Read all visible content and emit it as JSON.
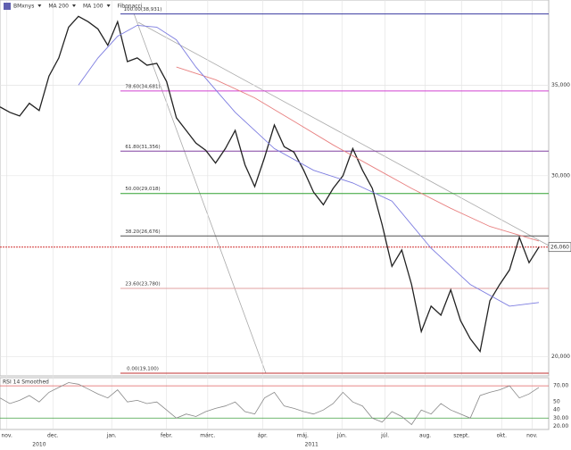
{
  "chart_data": {
    "type": "line",
    "xlim": [
      0,
      56
    ],
    "ylim": [
      19000,
      39700
    ],
    "xticks": [
      {
        "value": 0.7,
        "label": "nov."
      },
      {
        "value": 5.4,
        "label": "dec."
      },
      {
        "value": 11.4,
        "label": "jan."
      },
      {
        "value": 17,
        "label": "febr."
      },
      {
        "value": 21.2,
        "label": "márc."
      },
      {
        "value": 26.8,
        "label": "ápr."
      },
      {
        "value": 30.9,
        "label": "máj."
      },
      {
        "value": 34.9,
        "label": "jún."
      },
      {
        "value": 39.3,
        "label": "júl."
      },
      {
        "value": 43.4,
        "label": "aug."
      },
      {
        "value": 47.1,
        "label": "szept."
      },
      {
        "value": 51.2,
        "label": "okt."
      },
      {
        "value": 54.3,
        "label": "nov."
      }
    ],
    "years": [
      {
        "value": 4,
        "label": "2010"
      },
      {
        "value": 31.8,
        "label": "2011"
      }
    ],
    "yticks": [
      {
        "value": 20000,
        "label": "20,000"
      },
      {
        "value": 30000,
        "label": "30,000"
      },
      {
        "value": 35000,
        "label": "35,000"
      }
    ],
    "series": [
      {
        "name": "BMxnys",
        "color": "#222222",
        "values": [
          33800,
          33500,
          33300,
          34000,
          33600,
          35500,
          36500,
          38200,
          38800,
          38500,
          38100,
          37200,
          38500,
          36300,
          36500,
          36100,
          36200,
          35200,
          33200,
          32500,
          31800,
          31400,
          30700,
          31500,
          32500,
          30600,
          29400,
          31000,
          32800,
          31600,
          31300,
          30300,
          29100,
          28400,
          29300,
          30000,
          31500,
          30300,
          29300,
          27300,
          25000,
          25900,
          24000,
          21400,
          22800,
          22300,
          23700,
          22000,
          21000,
          20300,
          23100,
          24000,
          24800,
          26600,
          25200,
          26060
        ]
      },
      {
        "name": "MA 200",
        "color": "#e88080",
        "x": [
          18,
          22,
          26,
          30,
          34,
          38,
          42,
          46,
          50,
          55
        ],
        "values": [
          36000,
          35300,
          34300,
          33000,
          31700,
          30500,
          29300,
          28200,
          27200,
          26400
        ]
      },
      {
        "name": "MA 100",
        "color": "#7c7ce0",
        "x": [
          8,
          10,
          12,
          14,
          16,
          18,
          20,
          24,
          28,
          32,
          36,
          40,
          44,
          48,
          52,
          55
        ],
        "values": [
          35000,
          36500,
          37700,
          38300,
          38200,
          37500,
          36000,
          33500,
          31500,
          30300,
          29600,
          28600,
          26000,
          24000,
          22800,
          23000
        ]
      }
    ],
    "fibonacci": {
      "name": "Fibonacci",
      "levels": [
        {
          "value": 38931,
          "label": "100.00(38,931)",
          "color": "#3a3aa0"
        },
        {
          "value": 34681,
          "label": "78.60(34,681)",
          "color": "#d040d0"
        },
        {
          "value": 31356,
          "label": "61.80(31,356)",
          "color": "#8040a0"
        },
        {
          "value": 29018,
          "label": "50.00(29,018)",
          "color": "#30a030"
        },
        {
          "value": 26676,
          "label": "38.20(26,676)",
          "color": "#505050"
        },
        {
          "value": 23780,
          "label": "23.60(23,780)",
          "color": "#e0a0a0"
        },
        {
          "value": 19100,
          "label": "0.00(19,100)",
          "color": "#c03030"
        }
      ]
    },
    "last_price": {
      "value": 26060,
      "label": "26,060",
      "color": "#d03030"
    },
    "rsi": {
      "title": "RSI 14 Smoothed",
      "color": "#888888",
      "ylim": [
        17,
        79
      ],
      "yticks": [
        {
          "value": 20,
          "label": "20.00"
        },
        {
          "value": 30,
          "label": "30.00"
        },
        40,
        50,
        {
          "value": 70,
          "label": "70.00"
        }
      ],
      "overbought": 70,
      "oversold": 30,
      "values": [
        55,
        48,
        52,
        58,
        50,
        62,
        68,
        74,
        72,
        66,
        60,
        55,
        65,
        50,
        52,
        48,
        50,
        40,
        30,
        35,
        32,
        38,
        42,
        45,
        50,
        38,
        35,
        55,
        62,
        45,
        42,
        38,
        35,
        40,
        48,
        62,
        50,
        45,
        30,
        25,
        38,
        32,
        22,
        40,
        35,
        48,
        40,
        35,
        30,
        58,
        62,
        65,
        70,
        55,
        60,
        68
      ]
    }
  }
}
